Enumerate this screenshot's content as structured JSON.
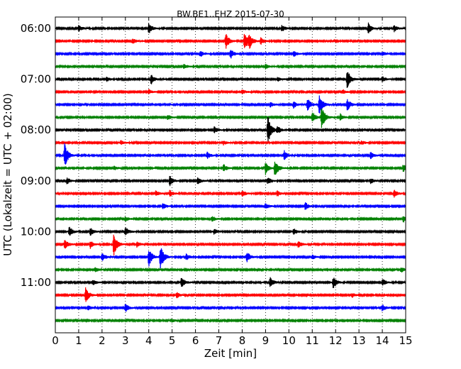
{
  "chart_data": {
    "type": "line",
    "title": "BW.BE1..EHZ 2015-07-30",
    "xlabel": "Zeit  [min]",
    "ylabel": "UTC (Lokalzeit = UTC + 02:00)",
    "xlim": [
      0,
      15
    ],
    "x_ticks": [
      "0",
      "1",
      "2",
      "3",
      "4",
      "5",
      "6",
      "7",
      "8",
      "9",
      "10",
      "11",
      "12",
      "13",
      "14",
      "15"
    ],
    "y_ticks": [
      "06:00",
      "07:00",
      "08:00",
      "09:00",
      "10:00",
      "11:00"
    ],
    "grid": "vertical dotted",
    "colors": [
      "#000000",
      "#ff0000",
      "#0000ff",
      "#008000"
    ],
    "series": [
      {
        "start": "06:00",
        "events": [
          [
            1.0,
            0.3
          ],
          [
            4.0,
            0.45
          ],
          [
            9.7,
            0.3
          ],
          [
            13.4,
            0.5
          ],
          [
            14.5,
            0.3
          ]
        ]
      },
      {
        "start": "06:15",
        "events": [
          [
            3.3,
            0.25
          ],
          [
            7.3,
            0.7
          ],
          [
            8.1,
            0.85
          ],
          [
            8.3,
            0.6
          ],
          [
            8.8,
            0.3
          ]
        ]
      },
      {
        "start": "06:30",
        "events": [
          [
            6.2,
            0.3
          ],
          [
            7.5,
            0.45
          ],
          [
            10.2,
            0.3
          ],
          [
            14.0,
            0.2
          ]
        ]
      },
      {
        "start": "06:45",
        "events": [
          [
            5.5,
            0.2
          ],
          [
            9.0,
            0.2
          ],
          [
            15.0,
            0.3
          ]
        ]
      },
      {
        "start": "07:00",
        "events": [
          [
            2.2,
            0.2
          ],
          [
            4.1,
            0.45
          ],
          [
            9.5,
            0.2
          ],
          [
            12.5,
            0.95
          ],
          [
            14.0,
            0.25
          ]
        ]
      },
      {
        "start": "07:15",
        "events": [
          [
            4.0,
            0.2
          ],
          [
            8.0,
            0.2
          ],
          [
            12.3,
            0.2
          ]
        ]
      },
      {
        "start": "07:30",
        "events": [
          [
            9.2,
            0.25
          ],
          [
            10.2,
            0.3
          ],
          [
            10.8,
            0.55
          ],
          [
            11.3,
            1.0
          ],
          [
            12.5,
            0.55
          ]
        ]
      },
      {
        "start": "07:45",
        "events": [
          [
            4.8,
            0.25
          ],
          [
            11.0,
            0.55
          ],
          [
            11.4,
            1.15
          ],
          [
            12.2,
            0.3
          ]
        ]
      },
      {
        "start": "08:00",
        "events": [
          [
            6.8,
            0.3
          ],
          [
            9.1,
            1.35
          ],
          [
            9.5,
            0.35
          ]
        ]
      },
      {
        "start": "08:15",
        "events": [
          [
            2.8,
            0.2
          ],
          [
            7.2,
            0.2
          ],
          [
            13.1,
            0.2
          ]
        ]
      },
      {
        "start": "08:30",
        "events": [
          [
            0.4,
            1.2
          ],
          [
            6.5,
            0.3
          ],
          [
            9.8,
            0.4
          ],
          [
            13.5,
            0.3
          ]
        ]
      },
      {
        "start": "08:45",
        "events": [
          [
            2.5,
            0.2
          ],
          [
            7.2,
            0.35
          ],
          [
            9.0,
            0.55
          ],
          [
            9.4,
            0.8
          ],
          [
            14.9,
            0.4
          ]
        ]
      },
      {
        "start": "09:00",
        "events": [
          [
            0.5,
            0.3
          ],
          [
            4.9,
            0.45
          ],
          [
            6.1,
            0.3
          ],
          [
            9.1,
            0.35
          ],
          [
            13.5,
            0.25
          ]
        ]
      },
      {
        "start": "09:15",
        "events": [
          [
            4.3,
            0.25
          ],
          [
            4.9,
            0.3
          ],
          [
            8.0,
            0.3
          ],
          [
            9.5,
            0.25
          ],
          [
            14.5,
            0.35
          ]
        ]
      },
      {
        "start": "09:30",
        "events": [
          [
            4.6,
            0.3
          ],
          [
            9.0,
            0.25
          ],
          [
            10.7,
            0.35
          ]
        ]
      },
      {
        "start": "09:45",
        "events": [
          [
            3.0,
            0.2
          ],
          [
            6.7,
            0.25
          ],
          [
            14.9,
            0.3
          ]
        ]
      },
      {
        "start": "10:00",
        "events": [
          [
            0.6,
            0.45
          ],
          [
            1.5,
            0.4
          ],
          [
            3.0,
            0.4
          ],
          [
            6.8,
            0.25
          ],
          [
            10.2,
            0.3
          ]
        ]
      },
      {
        "start": "10:15",
        "events": [
          [
            0.4,
            0.45
          ],
          [
            1.5,
            0.35
          ],
          [
            2.5,
            1.05
          ],
          [
            3.5,
            0.3
          ],
          [
            10.4,
            0.3
          ]
        ]
      },
      {
        "start": "10:30",
        "events": [
          [
            2.0,
            0.4
          ],
          [
            4.0,
            0.85
          ],
          [
            4.5,
            1.2
          ],
          [
            5.6,
            0.3
          ],
          [
            8.2,
            0.5
          ],
          [
            11.0,
            0.2
          ]
        ]
      },
      {
        "start": "10:45",
        "events": [
          [
            1.7,
            0.2
          ],
          [
            14.8,
            0.25
          ]
        ]
      },
      {
        "start": "11:00",
        "events": [
          [
            1.6,
            0.25
          ],
          [
            5.4,
            0.5
          ],
          [
            9.2,
            0.45
          ],
          [
            11.9,
            0.55
          ],
          [
            14.0,
            0.35
          ]
        ]
      },
      {
        "start": "11:15",
        "events": [
          [
            1.3,
            0.7
          ],
          [
            5.2,
            0.25
          ],
          [
            12.7,
            0.2
          ]
        ]
      },
      {
        "start": "11:30",
        "events": [
          [
            1.4,
            0.25
          ],
          [
            3.0,
            0.4
          ],
          [
            14.0,
            0.3
          ]
        ]
      },
      {
        "start": "11:45",
        "events": [
          [
            5.0,
            0.15
          ]
        ]
      }
    ]
  }
}
